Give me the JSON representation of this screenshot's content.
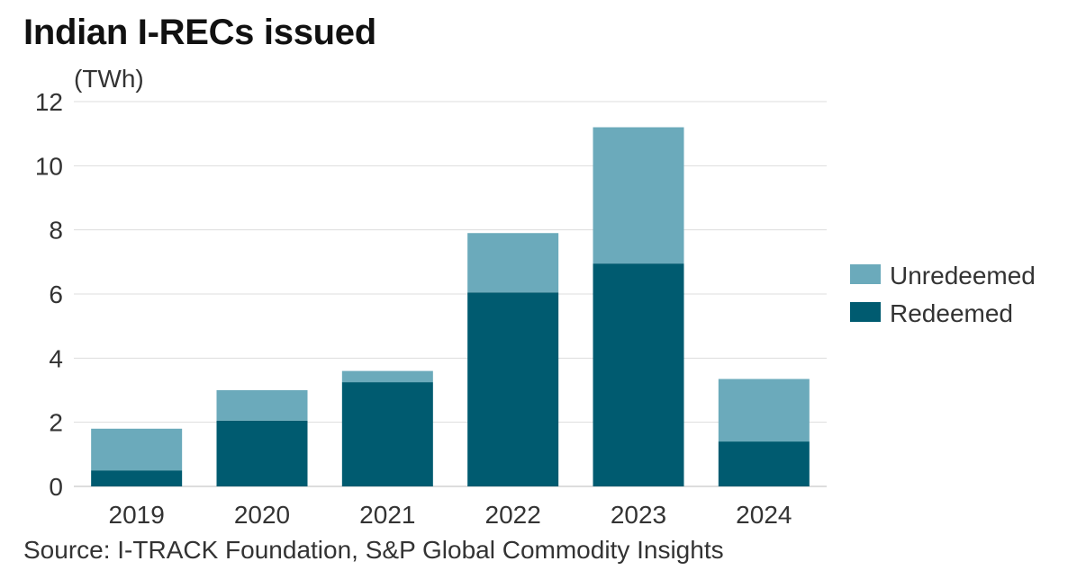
{
  "header": {
    "title": "Indian I-RECs issued",
    "unit": "(TWh)"
  },
  "footer": {
    "source": "Source: I-TRACK Foundation, S&P Global Commodity Insights"
  },
  "colors": {
    "redeemed": "#005B70",
    "unredeemed": "#6BAABB",
    "grid": "#dddddd",
    "axis": "#bbbbbb",
    "text": "#333333"
  },
  "chart_data": {
    "type": "bar",
    "stacked": true,
    "categories": [
      "2019",
      "2020",
      "2021",
      "2022",
      "2023",
      "2024"
    ],
    "series": [
      {
        "name": "Redeemed",
        "values": [
          0.5,
          2.05,
          3.25,
          6.05,
          6.95,
          1.4
        ]
      },
      {
        "name": "Unredeemed",
        "values": [
          1.3,
          0.95,
          0.35,
          1.85,
          4.25,
          1.95
        ]
      }
    ],
    "ylabel": "(TWh)",
    "ylim": [
      0,
      12
    ],
    "yticks": [
      0,
      2,
      4,
      6,
      8,
      10,
      12
    ],
    "grid": true,
    "legend": {
      "placement": "right",
      "entries": [
        "Unredeemed",
        "Redeemed"
      ]
    }
  }
}
